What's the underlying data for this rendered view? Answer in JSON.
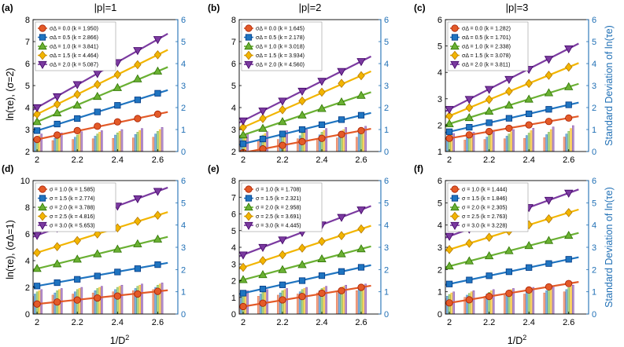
{
  "colors": {
    "series": [
      "#e35a28",
      "#1f74c0",
      "#6ab033",
      "#f2b500",
      "#7b3aa0"
    ],
    "right_axis": "#1f6fb5"
  },
  "shared_labels": {
    "x_label_left": "1/D",
    "x_label_right": "1/D",
    "x_label_sup": "2",
    "row1_ylabel": "ln(τe), (σ=2)",
    "row2_ylabel": "ln(τe), (σΔ=1)",
    "right_ylabel": "Standard Deviation of ln(τe)"
  },
  "chart_data": [
    {
      "id": "a",
      "label": "(a)",
      "title": "|p|=1",
      "type": "line",
      "x": [
        2.0,
        2.1,
        2.2,
        2.3,
        2.4,
        2.5,
        2.6
      ],
      "xlim": [
        1.98,
        2.7
      ],
      "xticks": [
        2,
        2.2,
        2.4,
        2.6
      ],
      "ylim": [
        2,
        8
      ],
      "yticks": [
        2,
        3,
        4,
        5,
        6,
        7,
        8
      ],
      "y2lim": [
        0,
        6
      ],
      "y2ticks": [
        0,
        1,
        2,
        3,
        4,
        5,
        6
      ],
      "ylabel": "ln(τe), (σ=2)",
      "y2label": "",
      "legend": [
        "σΔ = 0.0 (k = 1.950)",
        "σΔ = 0.5 (k = 2.866)",
        "σΔ = 1.0 (k = 3.841)",
        "σΔ = 1.5 (k = 4.464)",
        "σΔ = 2.0 (k = 5.087)"
      ],
      "markers": [
        "circle",
        "square",
        "triangle",
        "diamond",
        "triangle-down"
      ],
      "series": [
        {
          "name": "σΔ = 0.0",
          "k": 1.95,
          "values": [
            2.55,
            2.75,
            2.95,
            3.15,
            3.35,
            3.5,
            3.7
          ]
        },
        {
          "name": "σΔ = 0.5",
          "k": 2.866,
          "values": [
            2.95,
            3.25,
            3.5,
            3.8,
            4.1,
            4.35,
            4.65
          ]
        },
        {
          "name": "σΔ = 1.0",
          "k": 3.841,
          "values": [
            3.35,
            3.75,
            4.1,
            4.5,
            4.9,
            5.3,
            5.65
          ]
        },
        {
          "name": "σΔ = 1.5",
          "k": 4.464,
          "values": [
            3.7,
            4.15,
            4.6,
            5.05,
            5.5,
            5.95,
            6.4
          ]
        },
        {
          "name": "σΔ = 2.0",
          "k": 5.087,
          "values": [
            4.0,
            4.5,
            5.05,
            5.55,
            6.05,
            6.6,
            7.1
          ]
        }
      ],
      "std_bars": [
        [
          0.45,
          0.5,
          0.55,
          0.58,
          0.6,
          0.62,
          0.65
        ],
        [
          0.55,
          0.6,
          0.65,
          0.7,
          0.75,
          0.78,
          0.8
        ],
        [
          0.65,
          0.7,
          0.75,
          0.8,
          0.85,
          0.88,
          0.92
        ],
        [
          0.72,
          0.78,
          0.83,
          0.88,
          0.92,
          0.96,
          1.0
        ],
        [
          0.8,
          0.85,
          0.9,
          0.95,
          1.0,
          1.05,
          1.1
        ]
      ]
    },
    {
      "id": "b",
      "label": "(b)",
      "title": "|p|=2",
      "type": "line",
      "x": [
        2.0,
        2.1,
        2.2,
        2.3,
        2.4,
        2.5,
        2.6
      ],
      "xlim": [
        1.98,
        2.7
      ],
      "xticks": [
        2,
        2.2,
        2.4,
        2.6
      ],
      "ylim": [
        2,
        8
      ],
      "yticks": [
        2,
        3,
        4,
        5,
        6,
        7,
        8
      ],
      "y2lim": [
        0,
        6
      ],
      "y2ticks": [
        0,
        1,
        2,
        3,
        4,
        5,
        6
      ],
      "ylabel": "",
      "y2label": "",
      "legend": [
        "σΔ = 0.0 (k = 1.645)",
        "σΔ = 0.5 (k = 2.178)",
        "σΔ = 1.0 (k = 3.018)",
        "σΔ = 1.5 (k = 3.934)",
        "σΔ = 2.0 (k = 4.560)"
      ],
      "markers": [
        "circle",
        "square",
        "triangle",
        "diamond",
        "triangle-down"
      ],
      "series": [
        {
          "name": "σΔ = 0.0",
          "k": 1.645,
          "values": [
            1.95,
            2.12,
            2.28,
            2.45,
            2.6,
            2.78,
            2.95
          ]
        },
        {
          "name": "σΔ = 0.5",
          "k": 2.178,
          "values": [
            2.35,
            2.57,
            2.8,
            3.0,
            3.22,
            3.45,
            3.65
          ]
        },
        {
          "name": "σΔ = 1.0",
          "k": 3.018,
          "values": [
            2.75,
            3.05,
            3.35,
            3.65,
            3.95,
            4.25,
            4.55
          ]
        },
        {
          "name": "σΔ = 1.5",
          "k": 3.934,
          "values": [
            3.1,
            3.5,
            3.9,
            4.3,
            4.7,
            5.1,
            5.45
          ]
        },
        {
          "name": "σΔ = 2.0",
          "k": 4.56,
          "values": [
            3.4,
            3.85,
            4.3,
            4.75,
            5.2,
            5.65,
            6.1
          ]
        }
      ],
      "std_bars": [
        [
          0.5,
          0.52,
          0.55,
          0.58,
          0.6,
          0.62,
          0.65
        ],
        [
          0.6,
          0.64,
          0.68,
          0.72,
          0.76,
          0.8,
          0.84
        ],
        [
          0.7,
          0.75,
          0.8,
          0.85,
          0.88,
          0.92,
          0.96
        ],
        [
          0.78,
          0.82,
          0.88,
          0.92,
          0.96,
          1.0,
          1.05
        ],
        [
          0.85,
          0.9,
          0.95,
          1.0,
          1.05,
          1.1,
          1.15
        ]
      ]
    },
    {
      "id": "c",
      "label": "(c)",
      "title": "|p|=3",
      "type": "line",
      "x": [
        2.0,
        2.1,
        2.2,
        2.3,
        2.4,
        2.5,
        2.6
      ],
      "xlim": [
        1.98,
        2.7
      ],
      "xticks": [
        2,
        2.2,
        2.4,
        2.6
      ],
      "ylim": [
        1,
        6
      ],
      "yticks": [
        1,
        2,
        3,
        4,
        5,
        6
      ],
      "y2lim": [
        0,
        6
      ],
      "y2ticks": [
        0,
        1,
        2,
        3,
        4,
        5,
        6
      ],
      "ylabel": "",
      "y2label": "Standard Deviation of ln(τe)",
      "legend": [
        "σΔ = 0.0 (k = 1.282)",
        "σΔ = 0.5 (k = 1.701)",
        "σΔ = 1.0 (k = 2.338)",
        "σΔ = 1.5 (k = 3.078)",
        "σΔ = 2.0 (k = 3.811)"
      ],
      "markers": [
        "circle",
        "square",
        "triangle",
        "diamond",
        "triangle-down"
      ],
      "series": [
        {
          "name": "σΔ = 0.0",
          "k": 1.282,
          "values": [
            1.5,
            1.63,
            1.76,
            1.88,
            2.01,
            2.14,
            2.27
          ]
        },
        {
          "name": "σΔ = 0.5",
          "k": 1.701,
          "values": [
            1.75,
            1.92,
            2.09,
            2.26,
            2.43,
            2.6,
            2.77
          ]
        },
        {
          "name": "σΔ = 1.0",
          "k": 2.338,
          "values": [
            2.05,
            2.28,
            2.52,
            2.75,
            2.98,
            3.22,
            3.45
          ]
        },
        {
          "name": "σΔ = 1.5",
          "k": 3.078,
          "values": [
            2.35,
            2.66,
            2.97,
            3.28,
            3.58,
            3.89,
            4.2
          ]
        },
        {
          "name": "σΔ = 2.0",
          "k": 3.811,
          "values": [
            2.6,
            2.98,
            3.36,
            3.74,
            4.12,
            4.5,
            4.9
          ]
        }
      ],
      "std_bars": [
        [
          0.5,
          0.52,
          0.55,
          0.58,
          0.6,
          0.63,
          0.66
        ],
        [
          0.6,
          0.63,
          0.66,
          0.7,
          0.73,
          0.77,
          0.8
        ],
        [
          0.68,
          0.72,
          0.76,
          0.8,
          0.84,
          0.88,
          0.92
        ],
        [
          0.75,
          0.8,
          0.85,
          0.9,
          0.95,
          1.0,
          1.05
        ],
        [
          0.82,
          0.88,
          0.94,
          1.0,
          1.06,
          1.12,
          1.18
        ]
      ]
    },
    {
      "id": "d",
      "label": "(d)",
      "title": "",
      "type": "line",
      "x": [
        2.0,
        2.1,
        2.2,
        2.3,
        2.4,
        2.5,
        2.6
      ],
      "xlim": [
        1.98,
        2.7
      ],
      "xticks": [
        2,
        2.2,
        2.4,
        2.6
      ],
      "ylim": [
        0,
        10
      ],
      "yticks": [
        0,
        2,
        4,
        6,
        8,
        10
      ],
      "y2lim": [
        0,
        6
      ],
      "y2ticks": [
        0,
        1,
        2,
        3,
        4,
        5,
        6
      ],
      "ylabel": "ln(τe), (σΔ=1)",
      "y2label": "",
      "legend": [
        "σ = 1.0 (k = 1.585)",
        "σ = 1.5 (k = 2.774)",
        "σ = 2.0 (k = 3.788)",
        "σ = 2.5 (k = 4.816)",
        "σ = 3.0 (k = 5.653)"
      ],
      "markers": [
        "circle",
        "square",
        "triangle",
        "diamond",
        "triangle-down"
      ],
      "series": [
        {
          "name": "σ = 1.0",
          "k": 1.585,
          "values": [
            0.75,
            0.9,
            1.05,
            1.2,
            1.35,
            1.5,
            1.7
          ]
        },
        {
          "name": "σ = 1.5",
          "k": 2.774,
          "values": [
            2.1,
            2.35,
            2.6,
            2.85,
            3.15,
            3.4,
            3.7
          ]
        },
        {
          "name": "σ = 2.0",
          "k": 3.788,
          "values": [
            3.4,
            3.75,
            4.1,
            4.5,
            4.85,
            5.25,
            5.6
          ]
        },
        {
          "name": "σ = 2.5",
          "k": 4.816,
          "values": [
            4.6,
            5.05,
            5.5,
            6.0,
            6.45,
            6.95,
            7.4
          ]
        },
        {
          "name": "σ = 3.0",
          "k": 5.653,
          "values": [
            5.9,
            6.45,
            7.0,
            7.55,
            8.1,
            8.65,
            9.2
          ]
        }
      ],
      "std_bars": [
        [
          0.8,
          0.85,
          0.9,
          0.95,
          1.0,
          1.05,
          1.1
        ],
        [
          0.9,
          0.95,
          1.0,
          1.05,
          1.1,
          1.15,
          1.2
        ],
        [
          1.0,
          1.05,
          1.1,
          1.15,
          1.2,
          1.25,
          1.3
        ],
        [
          1.05,
          1.1,
          1.15,
          1.2,
          1.25,
          1.3,
          1.35
        ],
        [
          1.1,
          1.15,
          1.2,
          1.25,
          1.3,
          1.35,
          1.4
        ]
      ]
    },
    {
      "id": "e",
      "label": "(e)",
      "title": "",
      "type": "line",
      "x": [
        2.0,
        2.1,
        2.2,
        2.3,
        2.4,
        2.5,
        2.6
      ],
      "xlim": [
        1.98,
        2.7
      ],
      "xticks": [
        2,
        2.2,
        2.4,
        2.6
      ],
      "ylim": [
        0,
        8
      ],
      "yticks": [
        0,
        1,
        2,
        3,
        4,
        5,
        6,
        7,
        8
      ],
      "y2lim": [
        0,
        6
      ],
      "y2ticks": [
        0,
        1,
        2,
        3,
        4,
        5,
        6
      ],
      "ylabel": "",
      "y2label": "",
      "legend": [
        "σ = 1.0 (k = 1.708)",
        "σ = 1.5 (k = 2.321)",
        "σ = 2.0 (k = 2.958)",
        "σ = 2.5 (k = 3.691)",
        "σ = 3.0 (k = 4.445)"
      ],
      "markers": [
        "circle",
        "square",
        "triangle",
        "diamond",
        "triangle-down"
      ],
      "series": [
        {
          "name": "σ = 1.0",
          "k": 1.708,
          "values": [
            0.45,
            0.65,
            0.85,
            1.05,
            1.25,
            1.4,
            1.6
          ]
        },
        {
          "name": "σ = 1.5",
          "k": 2.321,
          "values": [
            1.25,
            1.5,
            1.75,
            2.0,
            2.3,
            2.55,
            2.8
          ]
        },
        {
          "name": "σ = 2.0",
          "k": 2.958,
          "values": [
            2.05,
            2.35,
            2.65,
            2.95,
            3.3,
            3.6,
            3.9
          ]
        },
        {
          "name": "σ = 2.5",
          "k": 3.691,
          "values": [
            2.8,
            3.2,
            3.55,
            3.95,
            4.35,
            4.7,
            5.1
          ]
        },
        {
          "name": "σ = 3.0",
          "k": 4.445,
          "values": [
            3.55,
            4.0,
            4.45,
            4.9,
            5.35,
            5.8,
            6.25
          ]
        }
      ],
      "std_bars": [
        [
          0.75,
          0.8,
          0.85,
          0.9,
          0.95,
          1.0,
          1.05
        ],
        [
          0.85,
          0.9,
          0.95,
          1.0,
          1.05,
          1.1,
          1.15
        ],
        [
          0.95,
          1.0,
          1.05,
          1.1,
          1.15,
          1.2,
          1.25
        ],
        [
          1.0,
          1.05,
          1.1,
          1.15,
          1.2,
          1.25,
          1.3
        ],
        [
          1.05,
          1.1,
          1.15,
          1.2,
          1.25,
          1.3,
          1.35
        ]
      ]
    },
    {
      "id": "f",
      "label": "(f)",
      "title": "",
      "type": "line",
      "x": [
        2.0,
        2.1,
        2.2,
        2.3,
        2.4,
        2.5,
        2.6
      ],
      "xlim": [
        1.98,
        2.7
      ],
      "xticks": [
        2,
        2.2,
        2.4,
        2.6
      ],
      "ylim": [
        0,
        6
      ],
      "yticks": [
        0,
        1,
        2,
        3,
        4,
        5,
        6
      ],
      "y2lim": [
        0,
        6
      ],
      "y2ticks": [
        0,
        1,
        2,
        3,
        4,
        5,
        6
      ],
      "ylabel": "",
      "y2label": "Standard Deviation of ln(τe)",
      "legend": [
        "σ = 1.0 (k = 1.444)",
        "σ = 1.5 (k = 1.846)",
        "σ = 2.0 (k = 2.305)",
        "σ = 2.5 (k = 2.763)",
        "σ = 3.0 (k = 3.228)"
      ],
      "markers": [
        "circle",
        "square",
        "triangle",
        "diamond",
        "triangle-down"
      ],
      "series": [
        {
          "name": "σ = 1.0",
          "k": 1.444,
          "values": [
            0.5,
            0.64,
            0.79,
            0.93,
            1.08,
            1.22,
            1.37
          ]
        },
        {
          "name": "σ = 1.5",
          "k": 1.846,
          "values": [
            1.35,
            1.53,
            1.72,
            1.9,
            2.09,
            2.27,
            2.46
          ]
        },
        {
          "name": "σ = 2.0",
          "k": 2.305,
          "values": [
            2.15,
            2.38,
            2.61,
            2.84,
            3.07,
            3.3,
            3.53
          ]
        },
        {
          "name": "σ = 2.5",
          "k": 2.763,
          "values": [
            2.9,
            3.18,
            3.45,
            3.73,
            4.01,
            4.28,
            4.56
          ]
        },
        {
          "name": "σ = 3.0",
          "k": 3.228,
          "values": [
            3.5,
            3.82,
            4.15,
            4.47,
            4.79,
            5.12,
            5.44
          ]
        }
      ],
      "std_bars": [
        [
          0.7,
          0.75,
          0.8,
          0.85,
          0.9,
          0.95,
          1.0
        ],
        [
          0.8,
          0.85,
          0.9,
          0.95,
          1.0,
          1.05,
          1.1
        ],
        [
          0.88,
          0.93,
          0.98,
          1.03,
          1.08,
          1.13,
          1.18
        ],
        [
          0.95,
          1.0,
          1.05,
          1.1,
          1.15,
          1.2,
          1.25
        ],
        [
          1.0,
          1.05,
          1.1,
          1.15,
          1.2,
          1.25,
          1.3
        ]
      ]
    }
  ]
}
